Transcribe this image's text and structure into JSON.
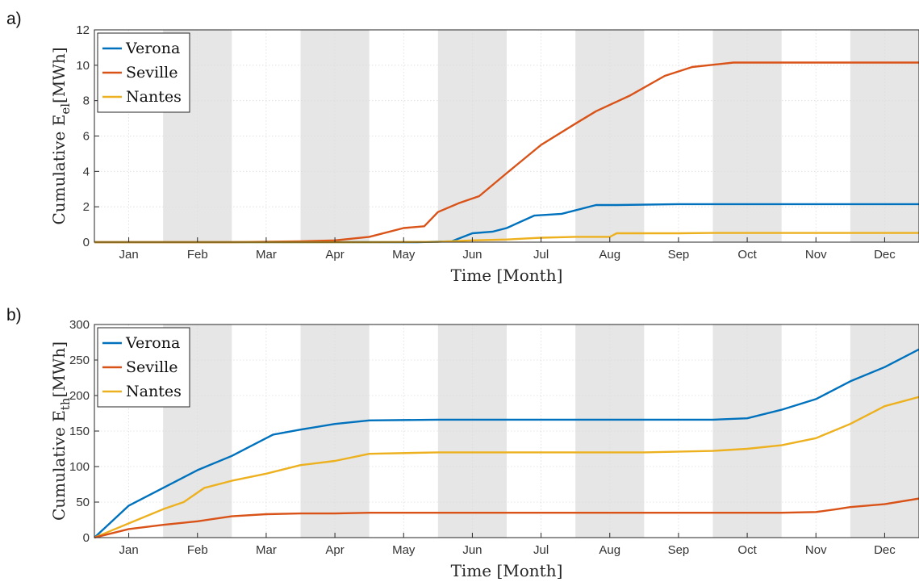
{
  "chart_data": [
    {
      "type": "line",
      "panel_label": "a)",
      "xlabel": "Time [Month]",
      "ylabel": {
        "main": "Cumulative E",
        "sub": "el",
        "unit": "[MWh]"
      },
      "categories": [
        "Jan",
        "Feb",
        "Mar",
        "Apr",
        "May",
        "Jun",
        "Jul",
        "Aug",
        "Sep",
        "Oct",
        "Nov",
        "Dec"
      ],
      "xlim": [
        0,
        12
      ],
      "ylim": [
        0,
        12
      ],
      "yticks": [
        "0",
        "2",
        "4",
        "6",
        "8",
        "10",
        "12"
      ],
      "shaded_months": [
        "Feb",
        "Apr",
        "Jun",
        "Aug",
        "Oct",
        "Dec"
      ],
      "grid": true,
      "legend": "top-left",
      "colors": {
        "Verona": "#0072bd",
        "Seville": "#d95319",
        "Nantes": "#edb120",
        "shade": "#e6e6e6"
      },
      "series": [
        {
          "name": "Verona",
          "x": [
            0,
            1,
            2,
            3,
            3.6,
            4.7,
            5.2,
            5.5,
            5.8,
            6.0,
            6.4,
            6.8,
            7.3,
            7.6,
            8.5,
            12
          ],
          "y": [
            0,
            0,
            0,
            0,
            0,
            0,
            0.05,
            0.5,
            0.6,
            0.8,
            1.5,
            1.6,
            2.1,
            2.1,
            2.15,
            2.15
          ]
        },
        {
          "name": "Seville",
          "x": [
            0,
            2,
            3,
            3.5,
            4,
            4.5,
            4.8,
            5.0,
            5.3,
            5.6,
            6.0,
            6.5,
            7.0,
            7.3,
            7.8,
            8.3,
            8.7,
            9.3,
            12
          ],
          "y": [
            0,
            0,
            0.05,
            0.1,
            0.3,
            0.8,
            0.9,
            1.7,
            2.2,
            2.6,
            3.9,
            5.5,
            6.7,
            7.4,
            8.3,
            9.4,
            9.9,
            10.15,
            10.15
          ]
        },
        {
          "name": "Nantes",
          "x": [
            0,
            4,
            5,
            5.5,
            6,
            6.5,
            7,
            7.5,
            7.6,
            8.5,
            9,
            12
          ],
          "y": [
            0,
            0,
            0.02,
            0.1,
            0.15,
            0.25,
            0.3,
            0.3,
            0.5,
            0.5,
            0.52,
            0.52
          ]
        }
      ]
    },
    {
      "type": "line",
      "panel_label": "b)",
      "xlabel": "Time [Month]",
      "ylabel": {
        "main": "Cumulative E",
        "sub": "th",
        "unit": "[MWh]"
      },
      "categories": [
        "Jan",
        "Feb",
        "Mar",
        "Apr",
        "May",
        "Jun",
        "Jul",
        "Aug",
        "Sep",
        "Oct",
        "Nov",
        "Dec"
      ],
      "xlim": [
        0,
        12
      ],
      "ylim": [
        0,
        300
      ],
      "yticks": [
        "0",
        "50",
        "100",
        "150",
        "200",
        "250",
        "300"
      ],
      "shaded_months": [
        "Feb",
        "Apr",
        "Jun",
        "Aug",
        "Oct",
        "Dec"
      ],
      "grid": true,
      "legend": "top-left",
      "colors": {
        "Verona": "#0072bd",
        "Seville": "#d95319",
        "Nantes": "#edb120",
        "shade": "#e6e6e6"
      },
      "series": [
        {
          "name": "Verona",
          "x": [
            0,
            0.5,
            1,
            1.5,
            2,
            2.3,
            2.6,
            3,
            3.5,
            4,
            5,
            6,
            7,
            8,
            9,
            9.5,
            10,
            10.5,
            11,
            11.5,
            12
          ],
          "y": [
            0,
            45,
            70,
            95,
            115,
            130,
            145,
            152,
            160,
            165,
            166,
            166,
            166,
            166,
            166,
            168,
            180,
            195,
            220,
            240,
            265
          ]
        },
        {
          "name": "Nantes",
          "x": [
            0,
            0.5,
            1,
            1.3,
            1.6,
            2,
            2.5,
            3,
            3.5,
            4,
            5,
            6,
            7,
            8,
            9,
            9.5,
            10,
            10.5,
            11,
            11.5,
            12
          ],
          "y": [
            0,
            20,
            40,
            50,
            70,
            80,
            90,
            102,
            108,
            118,
            120,
            120,
            120,
            120,
            122,
            125,
            130,
            140,
            160,
            185,
            198
          ]
        },
        {
          "name": "Seville",
          "x": [
            0,
            0.5,
            1,
            1.5,
            2,
            2.5,
            3,
            3.5,
            4,
            5,
            6,
            7,
            8,
            9,
            10,
            10.5,
            10.8,
            11,
            11.5,
            12
          ],
          "y": [
            0,
            12,
            18,
            23,
            30,
            33,
            34,
            34,
            35,
            35,
            35,
            35,
            35,
            35,
            35,
            36,
            40,
            43,
            47,
            55
          ]
        }
      ]
    }
  ]
}
